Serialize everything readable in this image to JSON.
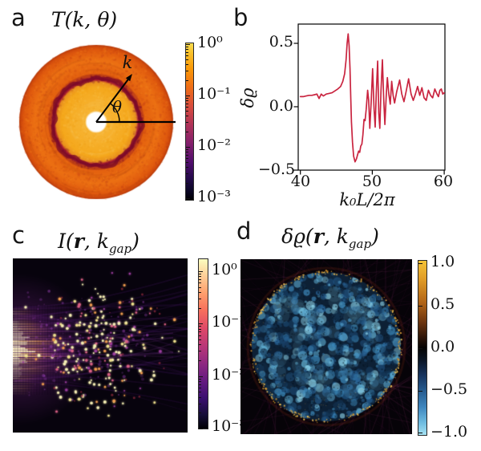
{
  "page": {
    "background": "#ffffff"
  },
  "panel_a": {
    "label": "a",
    "title": "T(k, θ)",
    "k_annotation": "k",
    "theta_annotation": "θ",
    "colorbar": {
      "scale": "log",
      "labels": [
        "10⁰",
        "10⁻¹",
        "10⁻²",
        "10⁻³"
      ],
      "colormap_name": "inferno",
      "gradient_top_to_bottom": [
        "#F9DC4F 0%",
        "#F9C12B 6%",
        "#FA9907 16%",
        "#EF6E17 28%",
        "#D94D3D 40%",
        "#AF3358 52%",
        "#83206C 64%",
        "#500E6C 76%",
        "#250A4C 86%",
        "#0B0726 94%",
        "#000004 100%"
      ]
    },
    "render": {
      "seed": 7,
      "white_core": "#FFFFFF",
      "inner_disk": [
        "#F9BE4C",
        "#F7B637",
        "#F5A81C",
        "#E88F1E"
      ],
      "gap_ring": [
        "#A81C2E",
        "#7E1030",
        "#B5331F"
      ],
      "outer_ring": [
        "#E3600F",
        "#EC7013",
        "#E05A0E",
        "#C8420C"
      ],
      "speckle_dark": "#7A0A28",
      "speckle_light": "#FCCB5E"
    }
  },
  "panel_b": {
    "label": "b",
    "ylabel": "δϱ",
    "xlabel": "k₀L/2π",
    "yticks": [
      "0.5",
      "0.0",
      "−0.5"
    ],
    "xticks": [
      "40",
      "50",
      "60"
    ],
    "line_color": "#C9243F",
    "spine_color": "#000000"
  },
  "panel_c": {
    "label": "c",
    "title": {
      "pre": "I(",
      "r": "r",
      "mid": ", k",
      "sub": "gap",
      "post": ")"
    },
    "colorbar": {
      "scale": "log",
      "labels": [
        "10⁰",
        "10⁻¹",
        "10⁻²",
        "10⁻³"
      ],
      "colormap_name": "magma",
      "gradient_top_to_bottom": [
        "#FCFDBF 0%",
        "#FDD79F 8%",
        "#FE9F6D 20%",
        "#F7705C 30%",
        "#DE4968 41%",
        "#B73779 52%",
        "#8C2981 62%",
        "#641A80 72%",
        "#3B0F70 82%",
        "#150E37 92%",
        "#000004 100%"
      ]
    },
    "render": {
      "seed": 11,
      "background": "#07030D",
      "beam_core": "#FFF8D2",
      "beam_warm": "#F6AA5A",
      "filament_color": "#7328A5",
      "speck_color": "#A546C3",
      "dot_colors": [
        "#F6EFB4",
        "#EFE08C",
        "#EE9B4E",
        "#D95F84",
        "#9B3C9E"
      ]
    }
  },
  "panel_d": {
    "label": "d",
    "title": {
      "pre": "δϱ(",
      "r": "r",
      "mid": ", k",
      "sub": "gap",
      "post": ")"
    },
    "colorbar": {
      "scale": "linear",
      "labels": [
        "1.0",
        "0.5",
        "0.0",
        "−0.5",
        "−1.0"
      ],
      "colormap_name": "diverging gold-black-cyan",
      "gradient_top_to_bottom": [
        "#F4C338 0%",
        "#DF9A26 11%",
        "#B06418 24%",
        "#6E3610 35%",
        "#2E1508 44%",
        "#050404 50%",
        "#0A1526 57%",
        "#173560 66%",
        "#25598C 74%",
        "#3E86BE 84%",
        "#6FBCE0 93%",
        "#A5E2F3 100%"
      ]
    },
    "render": {
      "seed": 23,
      "background": "#060308",
      "web_color": "rgba(150,55,125,0.09)",
      "disk_base": "#0D2035",
      "blob_colors": [
        "#12314F",
        "#1C4A74",
        "#2A679C",
        "#3F8FC2",
        "#66B9DF",
        "#8FD6EC"
      ],
      "rim_dot_colors": [
        "#E2AA3E",
        "#CE8F2C",
        "#F0C258"
      ],
      "outer_glow": "rgba(130,45,25,0.22)"
    }
  },
  "chart_data": [
    {
      "id": "a",
      "type": "heatmap",
      "projection": "polar",
      "title": "T(k, θ)",
      "colormap": "inferno",
      "scale": "log",
      "clim": [
        0.001,
        1
      ],
      "colorbar_ticks": [
        "10⁰",
        "10⁻¹",
        "10⁻²",
        "10⁻³"
      ],
      "description": "Polar transmission map T(k,θ): bright amber inner disk (T near 1), dark crimson low-transmission ring (band gap) at about 0.56 of outer radius, mottled orange outer annulus (T about 0.1), white hole at origin; arrow k at about 53 degrees, angle θ measured from the horizontal axis"
    },
    {
      "id": "b",
      "type": "line",
      "title": "",
      "xlabel": "k₀L/2π",
      "ylabel": "δϱ",
      "xlim": [
        39.7,
        60.1
      ],
      "ylim": [
        -0.51,
        0.65
      ],
      "xticks": [
        40,
        50,
        60
      ],
      "yticks": [
        0.5,
        0.0,
        -0.5
      ],
      "grid": false,
      "line_color": "#C9243F",
      "x": [
        40.0,
        40.4,
        40.8,
        41.2,
        41.6,
        42.0,
        42.3,
        42.6,
        42.9,
        43.2,
        43.6,
        44.0,
        44.4,
        44.8,
        45.2,
        45.6,
        45.9,
        46.15,
        46.35,
        46.5,
        46.65,
        46.78,
        46.9,
        47.0,
        47.1,
        47.25,
        47.4,
        47.6,
        47.8,
        47.95,
        48.1,
        48.25,
        48.4,
        48.55,
        48.7,
        48.85,
        49.0,
        49.15,
        49.35,
        49.5,
        49.65,
        49.85,
        50.05,
        50.25,
        50.4,
        50.55,
        50.75,
        50.9,
        51.05,
        51.2,
        51.4,
        51.6,
        51.75,
        51.95,
        52.1,
        52.3,
        52.5,
        52.7,
        52.9,
        53.1,
        53.4,
        53.8,
        54.1,
        54.4,
        54.7,
        55.05,
        55.4,
        55.7,
        56.0,
        56.3,
        56.6,
        56.9,
        57.2,
        57.5,
        57.8,
        58.1,
        58.4,
        58.7,
        59.0,
        59.2,
        59.4,
        59.6,
        59.8,
        60.0
      ],
      "y": [
        0.08,
        0.08,
        0.085,
        0.09,
        0.09,
        0.095,
        0.1,
        0.065,
        0.1,
        0.085,
        0.1,
        0.105,
        0.11,
        0.125,
        0.14,
        0.16,
        0.2,
        0.26,
        0.37,
        0.5,
        0.575,
        0.48,
        0.3,
        0.08,
        -0.12,
        -0.28,
        -0.39,
        -0.435,
        -0.41,
        -0.38,
        -0.35,
        -0.36,
        -0.31,
        -0.295,
        -0.22,
        -0.1,
        -0.11,
        -0.02,
        0.13,
        0.05,
        -0.17,
        0.05,
        0.3,
        -0.02,
        -0.16,
        0.1,
        0.36,
        -0.05,
        -0.17,
        0.12,
        0.37,
        0.05,
        -0.14,
        0.1,
        0.23,
        0.1,
        0.02,
        0.2,
        0.09,
        0.03,
        0.12,
        0.21,
        0.1,
        0.04,
        0.12,
        0.22,
        0.1,
        0.05,
        0.1,
        0.16,
        0.09,
        0.15,
        0.07,
        0.05,
        0.13,
        0.09,
        0.07,
        0.14,
        0.1,
        0.08,
        0.13,
        0.14,
        0.1,
        0.11
      ]
    },
    {
      "id": "c",
      "type": "heatmap",
      "title": "I(r, k_gap)",
      "colormap": "magma",
      "scale": "log",
      "clim": [
        0.001,
        1
      ],
      "colorbar_ticks": [
        "10⁰",
        "10⁻¹",
        "10⁻²",
        "10⁻³"
      ],
      "description": "Intensity speckle map at the gap frequency: bright fringed beam entering at the left edge, violet filaments spreading rightward, roughly 240 bright point scatterers (pale yellow, orange, magenta) over a near-black background"
    },
    {
      "id": "d",
      "type": "heatmap",
      "title": "δϱ(r, k_gap)",
      "colormap": "diverging gold-black-cyan",
      "scale": "linear",
      "clim": [
        -1,
        1
      ],
      "colorbar_ticks": [
        1.0,
        0.5,
        0.0,
        -0.5,
        -1.0
      ],
      "description": "Local density-of-states change at the gap frequency: circular medium filled with mottled blue blobs (negative δϱ), dotted gold ring of scatterers along the circular boundary, faint purple filament web outside on black background"
    }
  ]
}
